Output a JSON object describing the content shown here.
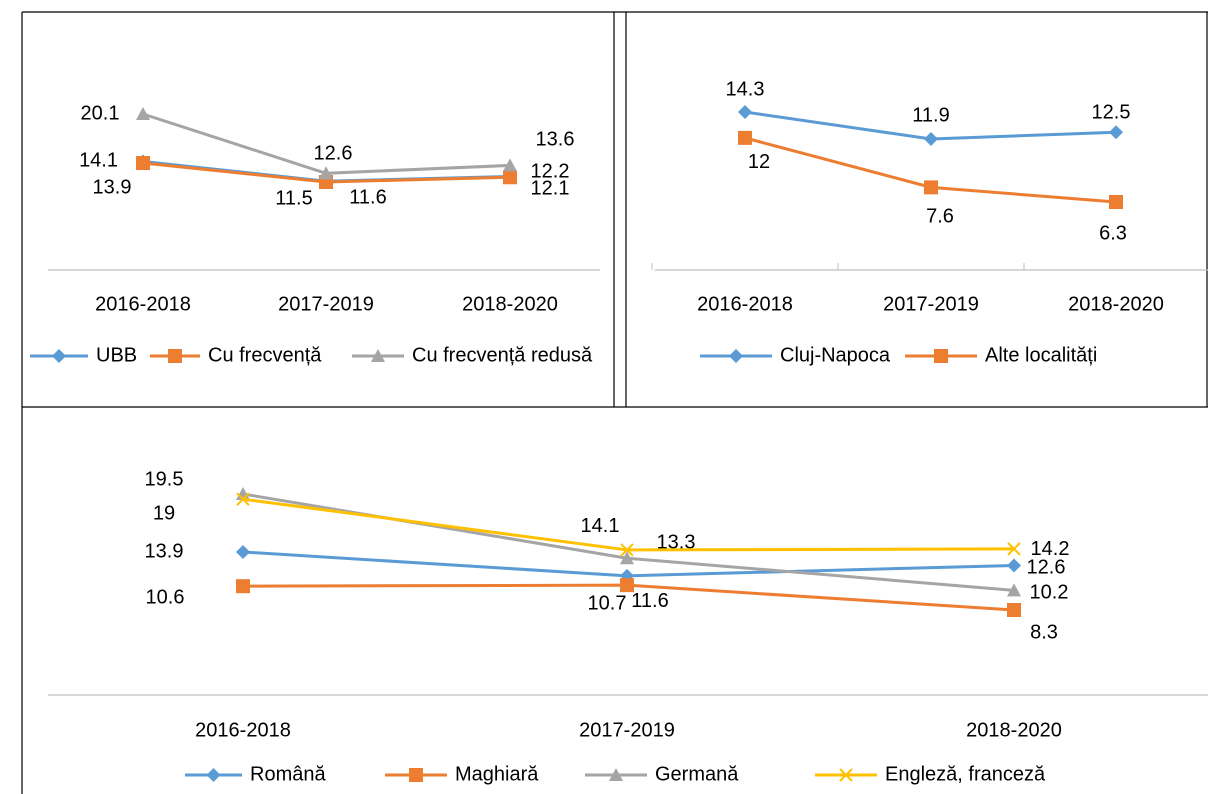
{
  "chart_data": [
    {
      "type": "line",
      "categories": [
        "2016-2018",
        "2017-2019",
        "2018-2020"
      ],
      "series": [
        {
          "name": "UBB",
          "color": "#5b9bd5",
          "marker": "diamond",
          "values": [
            14.1,
            11.6,
            12.2
          ]
        },
        {
          "name": "Cu frecvență",
          "color": "#ed7d31",
          "marker": "square",
          "values": [
            13.9,
            11.5,
            12.1
          ]
        },
        {
          "name": "Cu frecvență redusă",
          "color": "#a5a5a5",
          "marker": "triangle",
          "values": [
            20.1,
            12.6,
            13.6
          ]
        }
      ],
      "legend": "bottom"
    },
    {
      "type": "line",
      "categories": [
        "2016-2018",
        "2017-2019",
        "2018-2020"
      ],
      "series": [
        {
          "name": "Cluj-Napoca",
          "color": "#5b9bd5",
          "marker": "diamond",
          "values": [
            14.3,
            11.9,
            12.5
          ]
        },
        {
          "name": "Alte localități",
          "color": "#ed7d31",
          "marker": "square",
          "values": [
            12.0,
            7.6,
            6.3
          ]
        }
      ],
      "legend": "bottom"
    },
    {
      "type": "line",
      "categories": [
        "2016-2018",
        "2017-2019",
        "2018-2020"
      ],
      "series": [
        {
          "name": "Română",
          "color": "#5b9bd5",
          "marker": "diamond",
          "values": [
            13.9,
            11.6,
            12.6
          ]
        },
        {
          "name": "Maghiară",
          "color": "#ed7d31",
          "marker": "square",
          "values": [
            10.6,
            10.7,
            8.3
          ]
        },
        {
          "name": "Germană",
          "color": "#a5a5a5",
          "marker": "triangle",
          "values": [
            19.5,
            13.3,
            10.2
          ]
        },
        {
          "name": "Engleză, franceză",
          "color": "#ffc000",
          "marker": "x",
          "values": [
            19.0,
            14.1,
            14.2
          ]
        }
      ],
      "legend": "bottom"
    }
  ]
}
